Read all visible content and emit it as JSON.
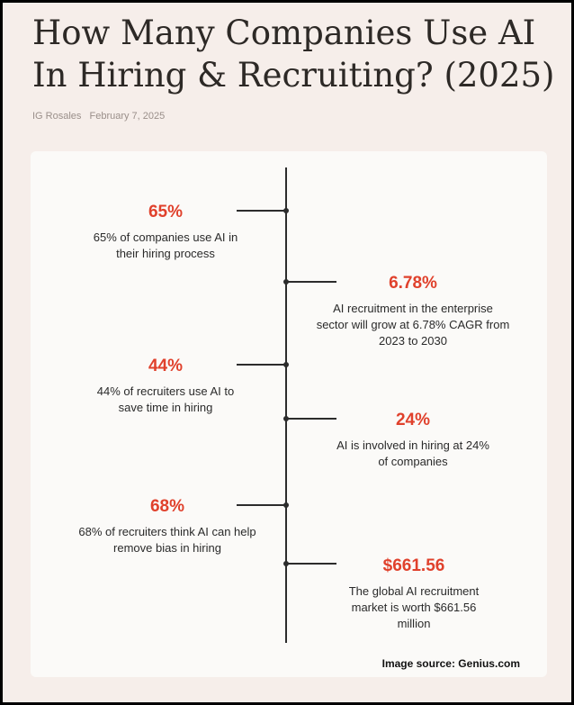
{
  "article": {
    "title": "How Many Companies Use AI In Hiring & Recruiting? (2025)",
    "author": "IG Rosales",
    "date": "February 7, 2025"
  },
  "infographic": {
    "items": [
      {
        "value": "65%",
        "text": "65% of companies use AI in their hiring process"
      },
      {
        "value": "6.78%",
        "text": "AI recruitment in the enterprise sector will grow at 6.78% CAGR from 2023 to 2030"
      },
      {
        "value": "44%",
        "text": "44% of recruiters use AI to save time in hiring"
      },
      {
        "value": "24%",
        "text": "AI is involved in hiring at 24% of companies"
      },
      {
        "value": "68%",
        "text": "68% of recruiters think AI can help remove bias in hiring"
      },
      {
        "value": "$661.56",
        "text": "The global AI recruitment market is worth $661.56 million"
      }
    ],
    "source": "Image source: Genius.com",
    "colors": {
      "accent": "#e0412c",
      "line": "#2c2c2c",
      "card": "#fbfaf8",
      "page": "#f6eeea"
    }
  }
}
